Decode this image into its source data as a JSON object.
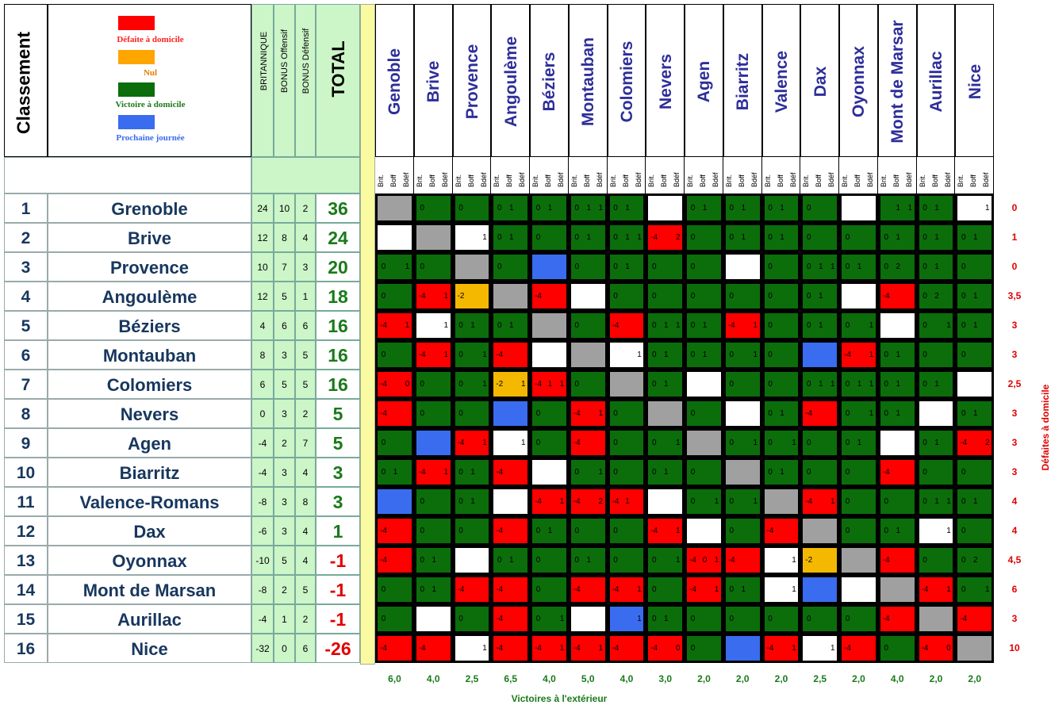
{
  "header": {
    "classement": "Classement",
    "britannique": "BRITANNIQUE",
    "bonus_offensif": "BONUS Offensif",
    "bonus_defensif": "BONUS Défensif",
    "total": "TOTAL"
  },
  "legend": {
    "defaite": "Défaite à domicile",
    "nul": "Nul",
    "victoire": "Victoire à domicile",
    "prochaine": "Prochaine journée"
  },
  "colors": {
    "red": "#ff0000",
    "orange": "#ffa500",
    "green": "#0b6e0b",
    "blue": "#3a6cf0",
    "grey": "#a0a0a0",
    "yellow": "#f5b800",
    "white": "#ffffff"
  },
  "sub_labels": [
    "Brit.",
    "Boff",
    "Bdéf"
  ],
  "columns": [
    "Genoble",
    "Brive",
    "Provence",
    "Angoulème",
    "Béziers",
    "Montauban",
    "Colomiers",
    "Nevers",
    "Agen",
    "Biarritz",
    "Valence",
    "Dax",
    "Oyonnax",
    "Mont de Marsar",
    "Aurillac",
    "Nice"
  ],
  "teams": [
    {
      "rank": "1",
      "name": "Grenoble",
      "brit": "24",
      "boff": "10",
      "bdef": "2",
      "total": "36",
      "home_def": "0"
    },
    {
      "rank": "2",
      "name": "Brive",
      "brit": "12",
      "boff": "8",
      "bdef": "4",
      "total": "24",
      "home_def": "1"
    },
    {
      "rank": "3",
      "name": "Provence",
      "brit": "10",
      "boff": "7",
      "bdef": "3",
      "total": "20",
      "home_def": "0"
    },
    {
      "rank": "4",
      "name": "Angoulème",
      "brit": "12",
      "boff": "5",
      "bdef": "1",
      "total": "18",
      "home_def": "3,5"
    },
    {
      "rank": "5",
      "name": "Béziers",
      "brit": "4",
      "boff": "6",
      "bdef": "6",
      "total": "16",
      "home_def": "3"
    },
    {
      "rank": "6",
      "name": "Montauban",
      "brit": "8",
      "boff": "3",
      "bdef": "5",
      "total": "16",
      "home_def": "3"
    },
    {
      "rank": "7",
      "name": "Colomiers",
      "brit": "6",
      "boff": "5",
      "bdef": "5",
      "total": "16",
      "home_def": "2,5"
    },
    {
      "rank": "8",
      "name": "Nevers",
      "brit": "0",
      "boff": "3",
      "bdef": "2",
      "total": "5",
      "home_def": "3"
    },
    {
      "rank": "9",
      "name": "Agen",
      "brit": "-4",
      "boff": "2",
      "bdef": "7",
      "total": "5",
      "home_def": "3"
    },
    {
      "rank": "10",
      "name": "Biarritz",
      "brit": "-4",
      "boff": "3",
      "bdef": "4",
      "total": "3",
      "home_def": "3"
    },
    {
      "rank": "11",
      "name": "Valence-Romans",
      "brit": "-8",
      "boff": "3",
      "bdef": "8",
      "total": "3",
      "home_def": "4"
    },
    {
      "rank": "12",
      "name": "Dax",
      "brit": "-6",
      "boff": "3",
      "bdef": "4",
      "total": "1",
      "home_def": "4"
    },
    {
      "rank": "13",
      "name": "Oyonnax",
      "brit": "-10",
      "boff": "5",
      "bdef": "4",
      "total": "-1",
      "home_def": "4,5"
    },
    {
      "rank": "14",
      "name": "Mont de Marsan",
      "brit": "-8",
      "boff": "2",
      "bdef": "5",
      "total": "-1",
      "home_def": "6"
    },
    {
      "rank": "15",
      "name": "Aurillac",
      "brit": "-4",
      "boff": "1",
      "bdef": "2",
      "total": "-1",
      "home_def": "3"
    },
    {
      "rank": "16",
      "name": "Nice",
      "brit": "-32",
      "boff": "0",
      "bdef": "6",
      "total": "-26",
      "home_def": "10"
    }
  ],
  "away_wins": [
    "6,0",
    "4,0",
    "2,5",
    "6,5",
    "4,0",
    "5,0",
    "4,0",
    "3,0",
    "2,0",
    "2,0",
    "2,0",
    "2,5",
    "2,0",
    "4,0",
    "2,0",
    "2,0"
  ],
  "away_wins_label": "Victoires à l'extérieur",
  "home_def_label": "Défaites à domicile",
  "matrix": [
    [
      "X:||",
      "G:0||",
      "G:0||",
      "G:0|1|",
      "G:0|1|",
      "G:0|1|1",
      "G:0|1|",
      "W:||",
      "G:0|1|",
      "G:0|1|",
      "G:0|1|",
      "G:0||",
      "W:||",
      "G:|1|1",
      "G:0|1|",
      "W:||1"
    ],
    [
      "W:||",
      "X:||",
      "W:||1",
      "G:0|1|",
      "G:0||",
      "G:0|1|",
      "G:0|1|1",
      "R:-4||2",
      "G:0||",
      "G:0|1|",
      "G:0|1|",
      "G:0||",
      "G:0||",
      "G:0|1|",
      "G:0|1|",
      "G:0|1|"
    ],
    [
      "G:0||1",
      "G:0||",
      "X:||",
      "G:0||",
      "B:||",
      "G:0||",
      "G:0|1|",
      "G:0||",
      "G:0||",
      "W:||",
      "G:0||",
      "G:0|1|1",
      "G:0|1|",
      "G:0|2|",
      "G:0|1|",
      "G:0||"
    ],
    [
      "G:0||",
      "R:-4||1",
      "Y:-2||",
      "X:||",
      "R:-4||",
      "W:||",
      "G:0||",
      "G:0||",
      "G:0||",
      "G:0||",
      "G:0||",
      "G:0|1|",
      "W:||",
      "R:-4||",
      "G:0|2|",
      "G:0|1|"
    ],
    [
      "R:-4||1",
      "W:||1",
      "G:0|1|",
      "G:0|1|",
      "X:||",
      "G:0||",
      "R:-4||",
      "G:0|1|1",
      "G:0|1|",
      "R:-4||1",
      "G:0||",
      "G:0|1|",
      "G:0||1",
      "W:||",
      "G:0||1",
      "G:0|1|"
    ],
    [
      "G:0||",
      "R:-4||1",
      "G:0||1",
      "R:-4||",
      "W:||",
      "X:||",
      "W:||1",
      "G:0|1|",
      "G:0|1|",
      "G:0||1",
      "G:0||",
      "B:||",
      "R:-4||1",
      "G:0|1|",
      "G:0||",
      "G:0||"
    ],
    [
      "R:-4||0",
      "G:0||",
      "G:0||1",
      "Y:-2||1",
      "R:-4|1|1",
      "G:0||",
      "X:||",
      "G:0|1|",
      "W:||",
      "G:0||",
      "G:0||",
      "G:0|1|1",
      "G:0|1|1",
      "G:0|1|",
      "G:0|1|",
      "W:||"
    ],
    [
      "R:-4||",
      "G:0||",
      "G:0||",
      "B:||",
      "G:0||",
      "R:-4||1",
      "G:0||",
      "X:||",
      "G:0||",
      "W:||",
      "G:0|1|",
      "R:-4||",
      "G:0||1",
      "G:0|1|",
      "W:||",
      "G:0|1|"
    ],
    [
      "G:0||",
      "B:||",
      "R:-4||1",
      "W:||1",
      "G:0||",
      "R:-4||",
      "G:0||",
      "G:0||1",
      "X:||",
      "G:0||1",
      "G:0||1",
      "G:0||",
      "G:0|1|",
      "W:||",
      "G:0|1|",
      "R:-4||2"
    ],
    [
      "G:0|1|",
      "R:-4||1",
      "G:0|1|",
      "R:-4||",
      "W:||",
      "G:0||1",
      "G:0||",
      "G:0|1|",
      "G:0||",
      "X:||",
      "G:0|1|",
      "G:0||",
      "G:0||",
      "R:-4||",
      "G:0||",
      "G:0||"
    ],
    [
      "B:||",
      "G:0||",
      "G:0|1|",
      "W:||",
      "R:-4||1",
      "R:-4||2",
      "R:-4|1|",
      "W:||",
      "G:0||1",
      "G:0||1",
      "X:||",
      "R:-4||1",
      "G:0||",
      "G:0||",
      "G:0|1|1",
      "G:0|1|"
    ],
    [
      "R:-4||",
      "G:0||",
      "G:0||",
      "R:-4||",
      "G:0|1|",
      "G:0||",
      "G:0||",
      "R:-4||1",
      "W:||",
      "G:0||",
      "R:-4||",
      "X:||",
      "G:0||",
      "G:0|1|",
      "W:||1",
      "G:0||"
    ],
    [
      "R:-4||",
      "G:0|1|",
      "W:||",
      "G:0|1|",
      "G:0||",
      "G:0|1|",
      "G:0||",
      "G:0||1",
      "R:-4|0|1",
      "R:-4||",
      "W:||1",
      "Y:-2||",
      "X:||",
      "R:-4||",
      "G:0||",
      "G:0|2|"
    ],
    [
      "G:0||",
      "G:0|1|",
      "R:-4||",
      "R:-4||",
      "G:0||",
      "R:-4||",
      "R:-4||1",
      "G:0||",
      "R:-4||1",
      "G:0|1|",
      "W:||1",
      "B:||",
      "W:||",
      "X:||",
      "R:-4||1",
      "G:0||1"
    ],
    [
      "G:0||",
      "W:||",
      "G:0||",
      "R:-4||",
      "G:0||1",
      "W:||",
      "B:||1",
      "G:0|1|",
      "G:0||",
      "G:0||",
      "G:0||",
      "G:0||",
      "G:0||",
      "R:-4||",
      "X:||",
      "R:-4||"
    ],
    [
      "R:-4||",
      "R:-4||",
      "W:||1",
      "R:-4||",
      "R:-4||1",
      "R:-4||1",
      "R:-4||",
      "R:-4||0",
      "G:0||",
      "B:||",
      "R:-4||1",
      "W:||1",
      "R:-4||",
      "G:0||",
      "R:-4||0",
      "X:||"
    ]
  ]
}
